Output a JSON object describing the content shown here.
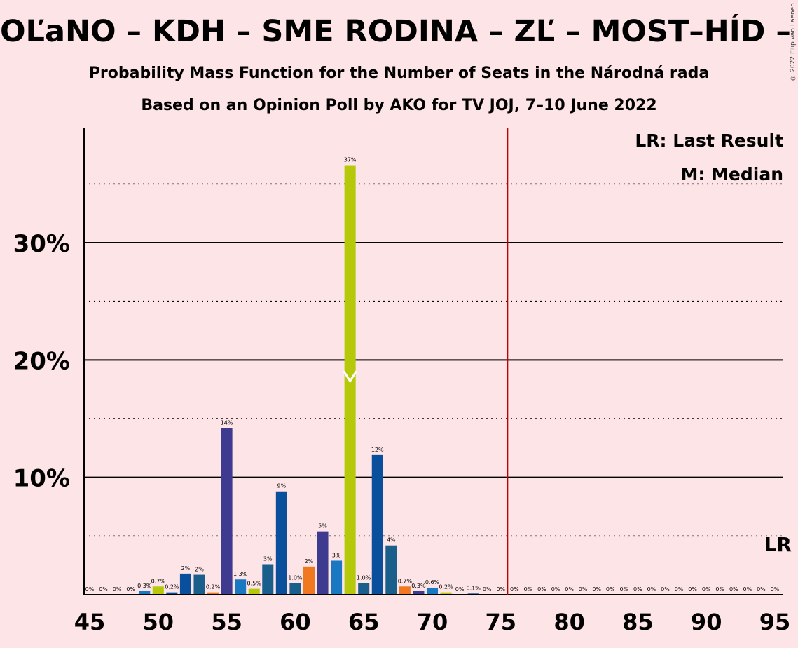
{
  "header": {
    "title": "OĽaNO – KDH – SME RODINA – ZĽ – MOST–HÍD – PS–SPOLU",
    "subtitle1": "Probability Mass Function for the Number of Seats in the Národná rada",
    "subtitle2": "Based on an Opinion Poll by AKO for TV JOJ, 7–10 June 2022",
    "copyright": "© 2022 Filip van Laenen"
  },
  "legend": {
    "last_result": "LR: Last Result",
    "median": "M: Median",
    "lr_marker": "LR"
  },
  "chart_data": {
    "type": "bar",
    "title": "OĽaNO – KDH – SME RODINA – ZĽ – MOST–HÍD – PS–SPOLU",
    "xlabel": "",
    "ylabel": "",
    "xlim": [
      45,
      95
    ],
    "ylim": [
      0,
      40
    ],
    "y_ticks_labeled": [
      "10%",
      "20%",
      "30%"
    ],
    "y_tick_values": [
      10,
      20,
      30
    ],
    "y_dotted_lines": [
      5,
      15,
      25,
      35
    ],
    "x_ticks": [
      45,
      50,
      55,
      60,
      65,
      70,
      75,
      80,
      85,
      90,
      95
    ],
    "last_result_seat": 76,
    "median_seat": 64,
    "colors": {
      "background": "#fde4e6",
      "purple": "#3e3a8f",
      "blue_light": "#1a78c2",
      "lime": "#b5c90a",
      "dark_blue": "#0a4f9c",
      "teal": "#1a5e8c",
      "orange": "#f07820",
      "last_result_line": "#c00000"
    },
    "bars": [
      {
        "seat": 45,
        "value": 0,
        "label": "0%",
        "color": "dark_blue"
      },
      {
        "seat": 46,
        "value": 0,
        "label": "0%",
        "color": "dark_blue"
      },
      {
        "seat": 47,
        "value": 0,
        "label": "0%",
        "color": "dark_blue"
      },
      {
        "seat": 48,
        "value": 0,
        "label": "0%",
        "color": "dark_blue"
      },
      {
        "seat": 49,
        "value": 0.3,
        "label": "0.3%",
        "color": "blue_light"
      },
      {
        "seat": 50,
        "value": 0.7,
        "label": "0.7%",
        "color": "lime"
      },
      {
        "seat": 51,
        "value": 0.2,
        "label": "0.2%",
        "color": "dark_blue"
      },
      {
        "seat": 52,
        "value": 1.8,
        "label": "2%",
        "color": "dark_blue"
      },
      {
        "seat": 53,
        "value": 1.7,
        "label": "2%",
        "color": "teal"
      },
      {
        "seat": 54,
        "value": 0.2,
        "label": "0.2%",
        "color": "orange"
      },
      {
        "seat": 55,
        "value": 14.2,
        "label": "14%",
        "color": "purple"
      },
      {
        "seat": 56,
        "value": 1.3,
        "label": "1.3%",
        "color": "blue_light"
      },
      {
        "seat": 57,
        "value": 0.5,
        "label": "0.5%",
        "color": "lime"
      },
      {
        "seat": 58,
        "value": 2.6,
        "label": "3%",
        "color": "teal"
      },
      {
        "seat": 59,
        "value": 8.8,
        "label": "9%",
        "color": "dark_blue"
      },
      {
        "seat": 60,
        "value": 1.0,
        "label": "1.0%",
        "color": "teal"
      },
      {
        "seat": 61,
        "value": 2.4,
        "label": "2%",
        "color": "orange"
      },
      {
        "seat": 62,
        "value": 5.4,
        "label": "5%",
        "color": "purple"
      },
      {
        "seat": 63,
        "value": 2.9,
        "label": "3%",
        "color": "blue_light"
      },
      {
        "seat": 64,
        "value": 36.6,
        "label": "37%",
        "color": "lime"
      },
      {
        "seat": 65,
        "value": 1.0,
        "label": "1.0%",
        "color": "teal"
      },
      {
        "seat": 66,
        "value": 11.9,
        "label": "12%",
        "color": "dark_blue"
      },
      {
        "seat": 67,
        "value": 4.2,
        "label": "4%",
        "color": "teal"
      },
      {
        "seat": 68,
        "value": 0.7,
        "label": "0.7%",
        "color": "orange"
      },
      {
        "seat": 69,
        "value": 0.3,
        "label": "0.3%",
        "color": "purple"
      },
      {
        "seat": 70,
        "value": 0.6,
        "label": "0.6%",
        "color": "blue_light"
      },
      {
        "seat": 71,
        "value": 0.2,
        "label": "0.2%",
        "color": "lime"
      },
      {
        "seat": 72,
        "value": 0,
        "label": "0%",
        "color": "dark_blue"
      },
      {
        "seat": 73,
        "value": 0.1,
        "label": "0.1%",
        "color": "dark_blue"
      },
      {
        "seat": 74,
        "value": 0,
        "label": "0%",
        "color": "dark_blue"
      },
      {
        "seat": 75,
        "value": 0,
        "label": "0%",
        "color": "dark_blue"
      },
      {
        "seat": 76,
        "value": 0,
        "label": "0%",
        "color": "dark_blue"
      },
      {
        "seat": 77,
        "value": 0,
        "label": "0%",
        "color": "dark_blue"
      },
      {
        "seat": 78,
        "value": 0,
        "label": "0%",
        "color": "dark_blue"
      },
      {
        "seat": 79,
        "value": 0,
        "label": "0%",
        "color": "dark_blue"
      },
      {
        "seat": 80,
        "value": 0,
        "label": "0%",
        "color": "dark_blue"
      },
      {
        "seat": 81,
        "value": 0,
        "label": "0%",
        "color": "dark_blue"
      },
      {
        "seat": 82,
        "value": 0,
        "label": "0%",
        "color": "dark_blue"
      },
      {
        "seat": 83,
        "value": 0,
        "label": "0%",
        "color": "dark_blue"
      },
      {
        "seat": 84,
        "value": 0,
        "label": "0%",
        "color": "dark_blue"
      },
      {
        "seat": 85,
        "value": 0,
        "label": "0%",
        "color": "dark_blue"
      },
      {
        "seat": 86,
        "value": 0,
        "label": "0%",
        "color": "dark_blue"
      },
      {
        "seat": 87,
        "value": 0,
        "label": "0%",
        "color": "dark_blue"
      },
      {
        "seat": 88,
        "value": 0,
        "label": "0%",
        "color": "dark_blue"
      },
      {
        "seat": 89,
        "value": 0,
        "label": "0%",
        "color": "dark_blue"
      },
      {
        "seat": 90,
        "value": 0,
        "label": "0%",
        "color": "dark_blue"
      },
      {
        "seat": 91,
        "value": 0,
        "label": "0%",
        "color": "dark_blue"
      },
      {
        "seat": 92,
        "value": 0,
        "label": "0%",
        "color": "dark_blue"
      },
      {
        "seat": 93,
        "value": 0,
        "label": "0%",
        "color": "dark_blue"
      },
      {
        "seat": 94,
        "value": 0,
        "label": "0%",
        "color": "dark_blue"
      },
      {
        "seat": 95,
        "value": 0,
        "label": "0%",
        "color": "dark_blue"
      }
    ]
  }
}
